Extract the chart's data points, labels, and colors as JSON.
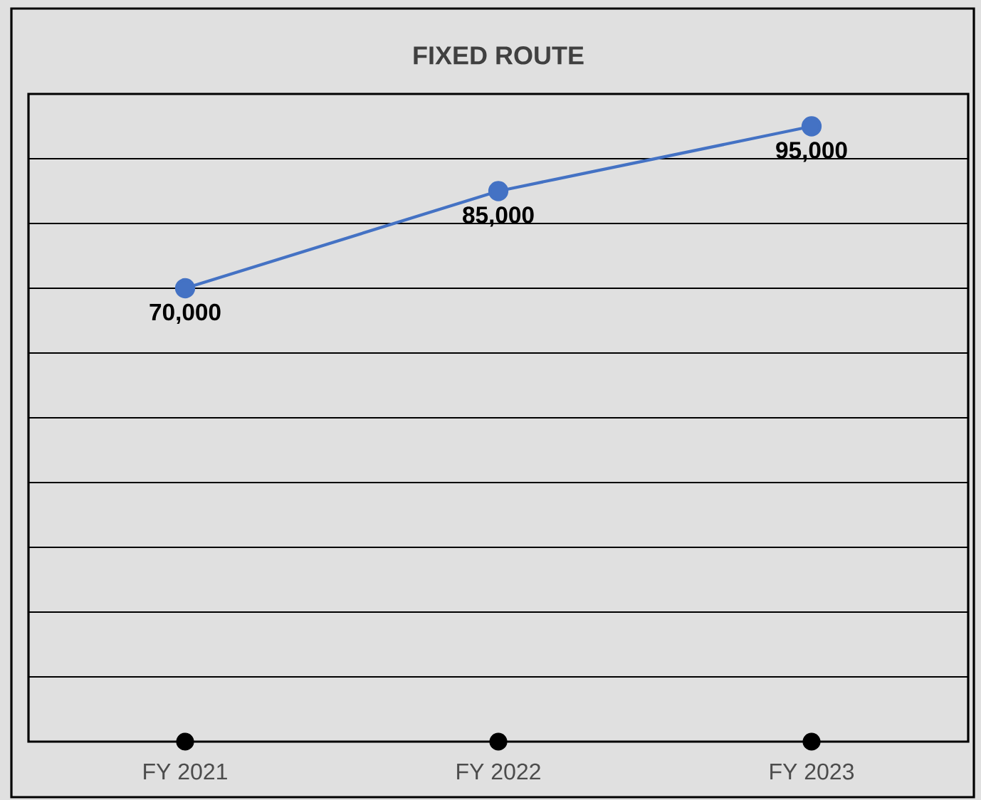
{
  "chart_data": {
    "type": "line",
    "title": "FIXED ROUTE",
    "categories": [
      "FY 2021",
      "FY 2022",
      "FY 2023"
    ],
    "series": [
      {
        "color": "#4472c4",
        "values": [
          70000,
          85000,
          95000
        ],
        "value_labels": [
          "70,000",
          "85,000",
          "95,000"
        ],
        "marker": "circle"
      },
      {
        "type": "scatter",
        "color": "#000000",
        "values": [
          0,
          0,
          0
        ],
        "marker": "circle"
      }
    ],
    "ylim": [
      0,
      100000
    ],
    "yticks": [
      {
        "value": 0,
        "label": null
      },
      {
        "value": 10000,
        "label": null
      },
      {
        "value": 20000,
        "label": null
      },
      {
        "value": 30000,
        "label": null
      },
      {
        "value": 40000,
        "label": null
      },
      {
        "value": 50000,
        "label": null
      },
      {
        "value": 60000,
        "label": null
      },
      {
        "value": 70000,
        "label": null
      },
      {
        "value": 80000,
        "label": null
      },
      {
        "value": 90000,
        "label": null
      },
      {
        "value": 100000,
        "label": null
      }
    ],
    "grid": "y",
    "tick_labels": "x"
  }
}
